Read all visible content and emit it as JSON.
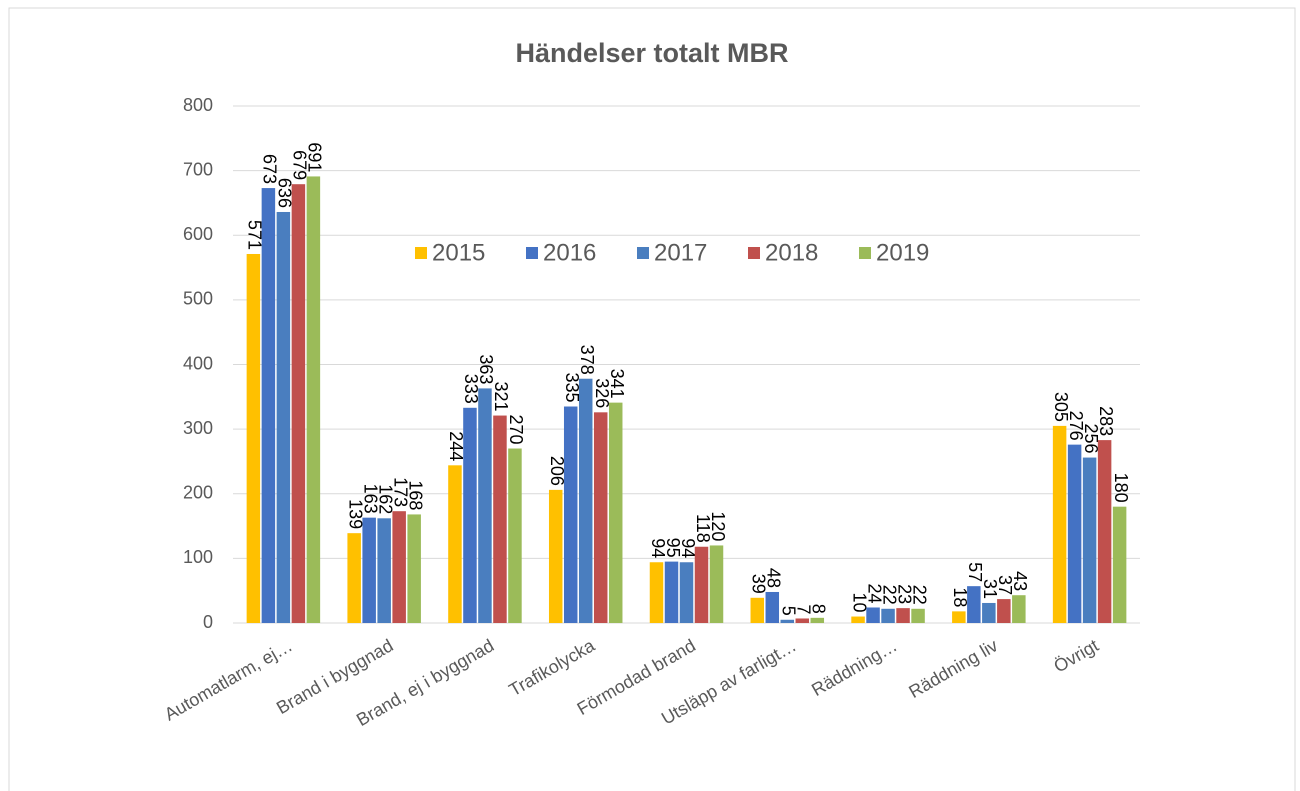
{
  "chart_data": {
    "type": "bar",
    "title": "Händelser totalt MBR",
    "categories": [
      "Automatlarm, ej…",
      "Brand i byggnad",
      "Brand, ej i byggnad",
      "Trafikolycka",
      "Förmodad brand",
      "Utsläpp av farligt…",
      "Räddning…",
      "Räddning liv",
      "Övrigt"
    ],
    "series": [
      {
        "name": "2015",
        "color": "#ffc000",
        "values": [
          571,
          139,
          244,
          206,
          94,
          39,
          10,
          18,
          305
        ]
      },
      {
        "name": "2016",
        "color": "#4472c4",
        "values": [
          673,
          163,
          333,
          335,
          95,
          48,
          24,
          57,
          276
        ]
      },
      {
        "name": "2017",
        "color": "#4a7ebf",
        "values": [
          636,
          162,
          363,
          378,
          94,
          5,
          22,
          31,
          256
        ]
      },
      {
        "name": "2018",
        "color": "#c0504d",
        "values": [
          679,
          173,
          321,
          326,
          118,
          7,
          23,
          37,
          283
        ]
      },
      {
        "name": "2019",
        "color": "#9bbb59",
        "values": [
          691,
          168,
          270,
          341,
          120,
          8,
          22,
          43,
          180
        ]
      }
    ],
    "ylim": [
      0,
      800
    ],
    "yticks": [
      0,
      100,
      200,
      300,
      400,
      500,
      600,
      700,
      800
    ],
    "grid": true,
    "legend": "top"
  }
}
